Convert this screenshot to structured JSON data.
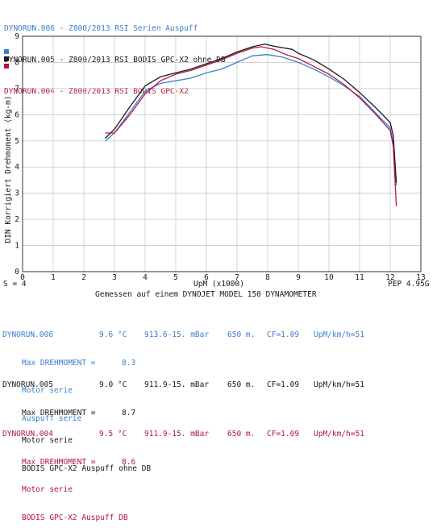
{
  "legend": [
    {
      "run": "DYNORUN.006",
      "sep": " - ",
      "desc": "Z800/2013 RSI Serien Auspuff",
      "color": "#3a7fd0"
    },
    {
      "run": "DYNORUN.005",
      "sep": " - ",
      "desc": "Z800/2013 RSI BODIS GPC-X2 ohne DB",
      "color": "#1a1a1a"
    },
    {
      "run": "DYNORUN.004",
      "sep": " - ",
      "desc": "Z800/2013 RSI BODIS GPC-X2",
      "color": "#b0154a"
    }
  ],
  "footer": {
    "smoothing": "S = 4",
    "x_unit": "UpM (x1000)",
    "pep": "PEP 4.95G",
    "measured_by": "Gemessen auf einem DYNOJET MODEL 150 DYNAMOMETER"
  },
  "chart_data": {
    "type": "line",
    "ylabel": "DIN Korrigiert Drehmoment (kg-m)",
    "xlabel": "UpM (x1000)",
    "xlim": [
      0,
      13
    ],
    "ylim": [
      0,
      9
    ],
    "x_ticks": [
      "0",
      "1",
      "2",
      "3",
      "4",
      "5",
      "6",
      "7",
      "8",
      "9",
      "10",
      "11",
      "12",
      "13"
    ],
    "y_ticks": [
      "0",
      "1",
      "2",
      "3",
      "4",
      "5",
      "6",
      "7",
      "8",
      "9"
    ],
    "grid": true,
    "series": [
      {
        "name": "DYNORUN.006",
        "color": "#3a7fd0",
        "x": [
          2.7,
          3.0,
          3.5,
          4.0,
          4.5,
          5.0,
          5.5,
          6.0,
          6.5,
          7.0,
          7.5,
          8.0,
          8.5,
          9.0,
          9.5,
          10.0,
          10.5,
          11.0,
          11.5,
          12.0,
          12.1,
          12.2
        ],
        "y": [
          5.0,
          5.3,
          6.1,
          6.9,
          7.2,
          7.3,
          7.4,
          7.6,
          7.75,
          8.0,
          8.25,
          8.3,
          8.2,
          8.0,
          7.75,
          7.45,
          7.1,
          6.7,
          6.1,
          5.5,
          4.9,
          3.3
        ]
      },
      {
        "name": "DYNORUN.005",
        "color": "#1a1a1a",
        "x": [
          2.7,
          3.0,
          3.5,
          4.0,
          4.5,
          5.0,
          5.5,
          6.0,
          6.5,
          7.0,
          7.5,
          7.9,
          8.3,
          8.8,
          9.0,
          9.5,
          10.0,
          10.5,
          11.0,
          11.5,
          12.0,
          12.1,
          12.2
        ],
        "y": [
          5.1,
          5.45,
          6.3,
          7.1,
          7.45,
          7.6,
          7.75,
          7.95,
          8.15,
          8.4,
          8.6,
          8.7,
          8.6,
          8.5,
          8.35,
          8.1,
          7.75,
          7.35,
          6.85,
          6.3,
          5.7,
          5.2,
          3.4
        ]
      },
      {
        "name": "DYNORUN.004",
        "color": "#b0154a",
        "x": [
          2.7,
          3.0,
          3.5,
          4.0,
          4.5,
          5.0,
          5.5,
          6.0,
          6.5,
          7.0,
          7.5,
          7.8,
          8.2,
          8.6,
          9.0,
          9.5,
          10.0,
          10.5,
          11.0,
          11.5,
          12.0,
          12.1,
          12.2
        ],
        "y": [
          5.3,
          5.3,
          6.0,
          6.8,
          7.3,
          7.55,
          7.7,
          7.9,
          8.1,
          8.35,
          8.55,
          8.6,
          8.5,
          8.3,
          8.15,
          7.85,
          7.55,
          7.15,
          6.65,
          6.05,
          5.4,
          4.8,
          2.5
        ]
      }
    ]
  },
  "runs": [
    {
      "color": "#3a7fd0",
      "run": "DYNORUN.006",
      "temp": "9.6 °C",
      "pressure": "913.6-15. mBar",
      "altitude": "650 m.",
      "cf": "CF=1.09",
      "speed": "UpM/km/h=51",
      "torque_label": "Max DREHMOMENT =",
      "torque_value": "8.3",
      "line1": "Motor serie",
      "line2": "Auspuff serie"
    },
    {
      "color": "#1a1a1a",
      "run": "DYNORUN.005",
      "temp": "9.0 °C",
      "pressure": "911.9-15. mBar",
      "altitude": "650 m.",
      "cf": "CF=1.09",
      "speed": "UpM/km/h=51",
      "torque_label": "Max DREHMOMENT =",
      "torque_value": "8.7",
      "line1": "Motor serie",
      "line2": "BODIS GPC-X2 Auspuff ohne DB"
    },
    {
      "color": "#b0154a",
      "run": "DYNORUN.004",
      "temp": "9.5 °C",
      "pressure": "911.9-15. mBar",
      "altitude": "650 m.",
      "cf": "CF=1.09",
      "speed": "UpM/km/h=51",
      "torque_label": "Max DREHMOMENT =",
      "torque_value": "8.6",
      "line1": "Motor serie",
      "line2": "BODIS GPC-X2 Auspuff DB"
    }
  ]
}
